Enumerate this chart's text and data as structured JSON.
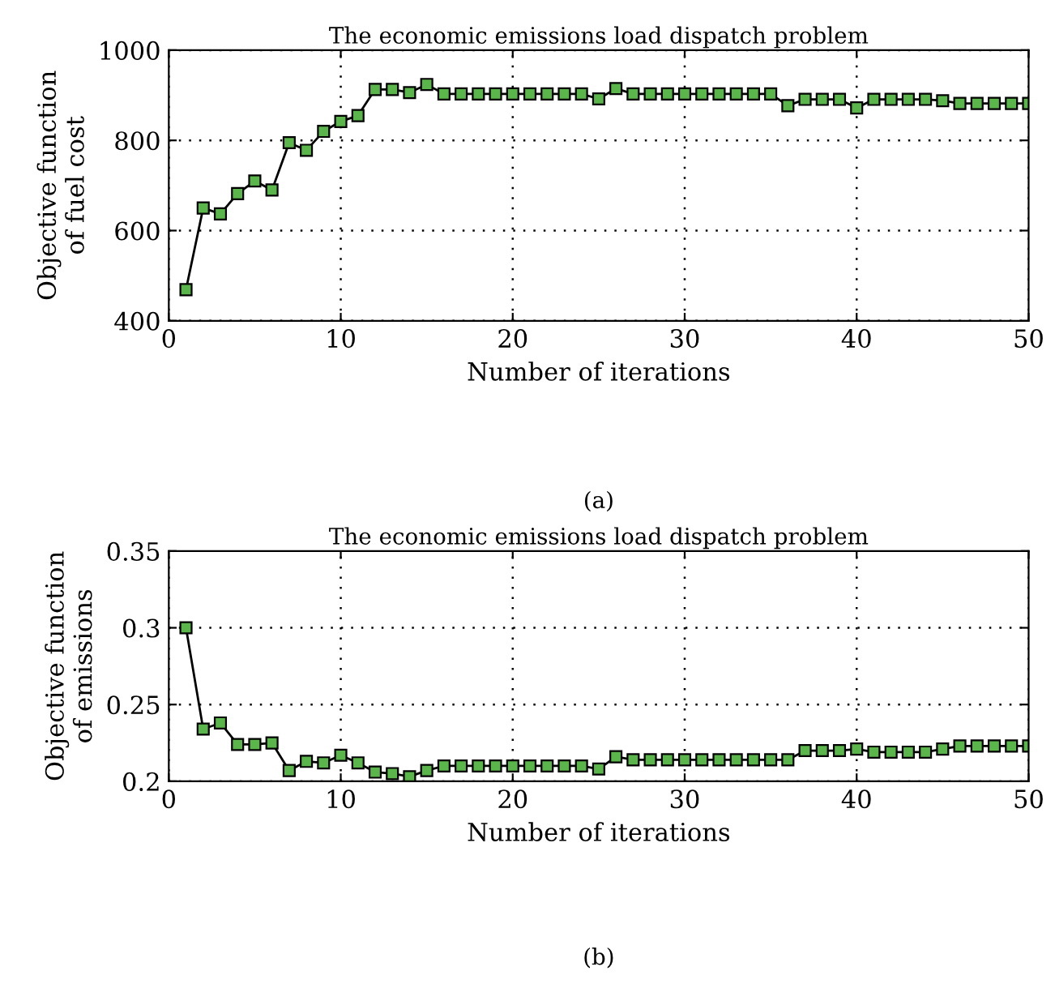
{
  "chart_data": [
    {
      "type": "line",
      "title": "The economic emissions load dispatch problem",
      "xlabel": "Number of iterations",
      "ylabel": "Objective function\nof fuel cost",
      "annotations": [
        "(a)"
      ],
      "x": [
        1,
        2,
        3,
        4,
        5,
        6,
        7,
        8,
        9,
        10,
        11,
        12,
        13,
        14,
        15,
        16,
        17,
        18,
        19,
        20,
        21,
        22,
        23,
        24,
        25,
        26,
        27,
        28,
        29,
        30,
        31,
        32,
        33,
        34,
        35,
        36,
        37,
        38,
        39,
        40,
        41,
        42,
        43,
        44,
        45,
        46,
        47,
        48,
        49,
        50
      ],
      "series": [
        {
          "color": "#5ab54a",
          "values": [
            469,
            650,
            637,
            682,
            710,
            690,
            795,
            778,
            820,
            842,
            855,
            913,
            913,
            906,
            924,
            903,
            903,
            903,
            903,
            903,
            903,
            903,
            903,
            903,
            892,
            915,
            903,
            903,
            903,
            903,
            903,
            903,
            903,
            903,
            903,
            877,
            891,
            891,
            891,
            872,
            891,
            891,
            891,
            891,
            888,
            882,
            882,
            882,
            882,
            882
          ]
        }
      ],
      "xlim": [
        0,
        50
      ],
      "xticks": [
        0,
        10,
        20,
        30,
        40,
        50
      ],
      "ylim": [
        400,
        1000
      ],
      "yticks": [
        400,
        600,
        800,
        1000
      ],
      "grid": true,
      "marker": "square",
      "line_style": "solid"
    },
    {
      "type": "line",
      "title": "The economic emissions load dispatch problem",
      "xlabel": "Number of iterations",
      "ylabel": "Objective function\nof emissions",
      "annotations": [
        "(b)"
      ],
      "x": [
        1,
        2,
        3,
        4,
        5,
        6,
        7,
        8,
        9,
        10,
        11,
        12,
        13,
        14,
        15,
        16,
        17,
        18,
        19,
        20,
        21,
        22,
        23,
        24,
        25,
        26,
        27,
        28,
        29,
        30,
        31,
        32,
        33,
        34,
        35,
        36,
        37,
        38,
        39,
        40,
        41,
        42,
        43,
        44,
        45,
        46,
        47,
        48,
        49,
        50
      ],
      "series": [
        {
          "color": "#5ab54a",
          "values": [
            0.3,
            0.234,
            0.238,
            0.224,
            0.224,
            0.225,
            0.207,
            0.213,
            0.212,
            0.217,
            0.212,
            0.206,
            0.205,
            0.203,
            0.207,
            0.21,
            0.21,
            0.21,
            0.21,
            0.21,
            0.21,
            0.21,
            0.21,
            0.21,
            0.208,
            0.216,
            0.214,
            0.214,
            0.214,
            0.214,
            0.214,
            0.214,
            0.214,
            0.214,
            0.214,
            0.214,
            0.22,
            0.22,
            0.22,
            0.221,
            0.219,
            0.219,
            0.219,
            0.219,
            0.221,
            0.223,
            0.223,
            0.223,
            0.223,
            0.223
          ]
        }
      ],
      "xlim": [
        0,
        50
      ],
      "xticks": [
        0,
        10,
        20,
        30,
        40,
        50
      ],
      "ylim": [
        0.2,
        0.35
      ],
      "yticks": [
        0.2,
        {
          "value": 0.25,
          "label": "0.25"
        },
        0.3,
        0.35
      ],
      "grid": true,
      "marker": "square",
      "line_style": "solid"
    }
  ]
}
